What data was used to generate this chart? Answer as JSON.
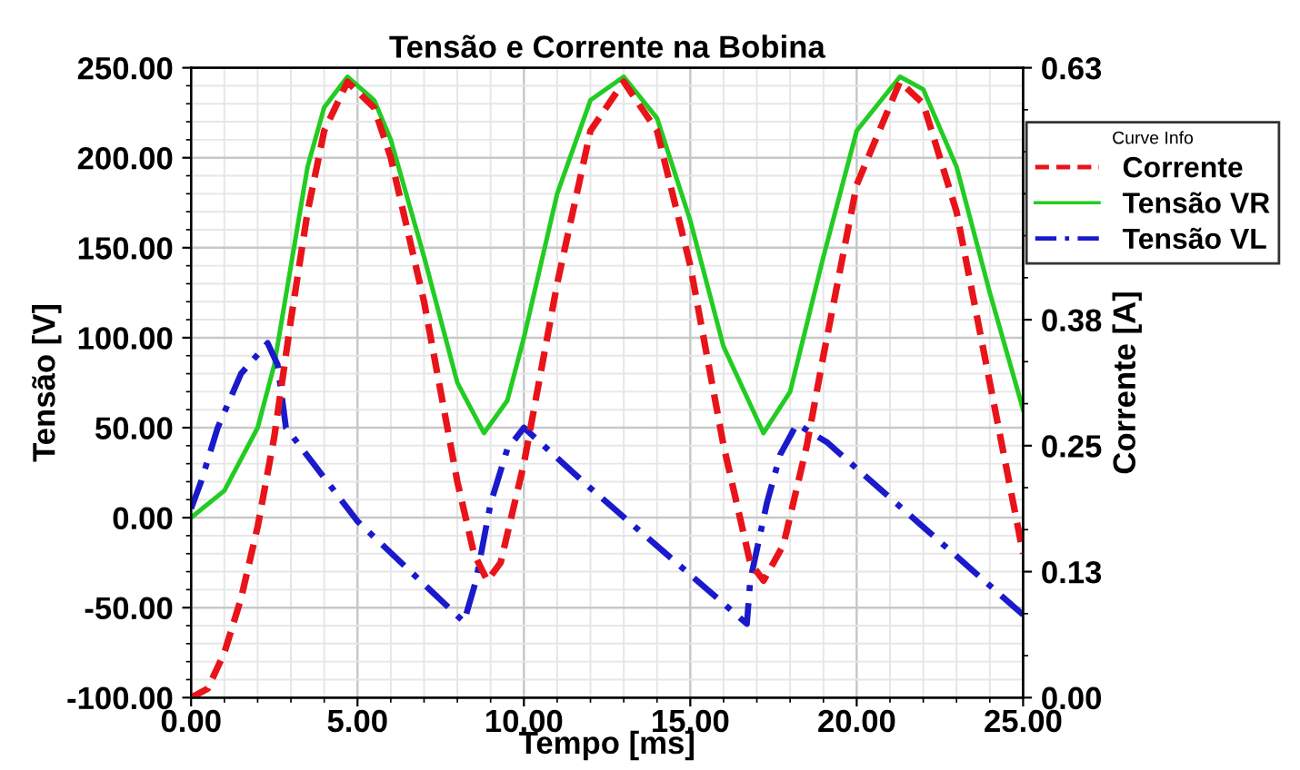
{
  "chart_data": {
    "type": "line",
    "title": "Tensão e Corrente na Bobina",
    "xlabel": "Tempo [ms]",
    "ylabel": "Tensão [V]",
    "y2label": "Corrente [A]",
    "legend_title": "Curve Info",
    "xlim": [
      0,
      25
    ],
    "xticks": [
      {
        "value": 0,
        "label": "0.00"
      },
      {
        "value": 5,
        "label": "5.00"
      },
      {
        "value": 10,
        "label": "10.00"
      },
      {
        "value": 15,
        "label": "15.00"
      },
      {
        "value": 20,
        "label": "20.00"
      },
      {
        "value": 25,
        "label": "25.00"
      }
    ],
    "ylim": [
      -100,
      250
    ],
    "yticks": [
      {
        "value": -100,
        "label": "-100.00"
      },
      {
        "value": -50,
        "label": "-50.00"
      },
      {
        "value": 0,
        "label": "0.00"
      },
      {
        "value": 50,
        "label": "50.00"
      },
      {
        "value": 100,
        "label": "100.00"
      },
      {
        "value": 150,
        "label": "150.00"
      },
      {
        "value": 200,
        "label": "200.00"
      },
      {
        "value": 250,
        "label": "250.00"
      }
    ],
    "y2lim": [
      0,
      0.63
    ],
    "y2ticks": [
      {
        "value": 0,
        "label": "0.00"
      },
      {
        "value": 0.126,
        "label": "0.13"
      },
      {
        "value": 0.252,
        "label": "0.25"
      },
      {
        "value": 0.378,
        "label": "0.38"
      },
      {
        "value": 0.504,
        "label": null
      },
      0.63
    ],
    "grid": true,
    "legend": "top right",
    "series": [
      {
        "name": "Corrente",
        "color": "#e8141a",
        "axis": "y2",
        "line_style": "dashed",
        "x": [
          0,
          0.5,
          1,
          1.5,
          2,
          2.5,
          3,
          3.5,
          4,
          4.7,
          5.5,
          6,
          7,
          8,
          8.5,
          8.9,
          9.3,
          10,
          11,
          12,
          13,
          14,
          15,
          16,
          16.8,
          17.2,
          17.8,
          18.5,
          19,
          20,
          21.3,
          22,
          23,
          24,
          25
        ],
        "values": [
          0,
          0.009,
          0.045,
          0.099,
          0.171,
          0.261,
          0.378,
          0.486,
          0.567,
          0.616,
          0.59,
          0.54,
          0.396,
          0.216,
          0.144,
          0.117,
          0.135,
          0.234,
          0.414,
          0.567,
          0.616,
          0.567,
          0.432,
          0.252,
          0.135,
          0.117,
          0.153,
          0.252,
          0.342,
          0.513,
          0.616,
          0.594,
          0.486,
          0.315,
          0.144
        ]
      },
      {
        "name": "Tensão VR",
        "color": "#22cc22",
        "line_style": "solid",
        "x": [
          0,
          1,
          2,
          2.5,
          3,
          3.5,
          4,
          4.7,
          5.5,
          6,
          7,
          8,
          8.8,
          9.5,
          10,
          11,
          12,
          13,
          14,
          15,
          16,
          17.2,
          18,
          19,
          20,
          21.3,
          22,
          23,
          24,
          25
        ],
        "values": [
          0,
          15,
          50,
          85,
          140,
          195,
          228,
          245,
          232,
          210,
          145,
          75,
          47,
          65,
          100,
          180,
          232,
          245,
          222,
          165,
          95,
          47,
          70,
          145,
          215,
          245,
          238,
          195,
          125,
          60
        ]
      },
      {
        "name": "Tensão VL",
        "color": "#1a1acc",
        "line_style": "dashdot",
        "x": [
          0,
          0.3,
          0.8,
          1.5,
          2.3,
          2.6,
          2.85,
          5,
          8.2,
          8.56,
          9.0,
          9.5,
          10.0,
          11.9,
          16.7,
          16.8,
          17.3,
          17.7,
          18.2,
          19.1,
          25
        ],
        "values": [
          5,
          20,
          50,
          80,
          97,
          85,
          50,
          -2,
          -58,
          -35,
          8,
          38,
          50,
          18,
          -59,
          -35,
          8,
          35,
          52,
          42,
          -54
        ]
      }
    ]
  }
}
